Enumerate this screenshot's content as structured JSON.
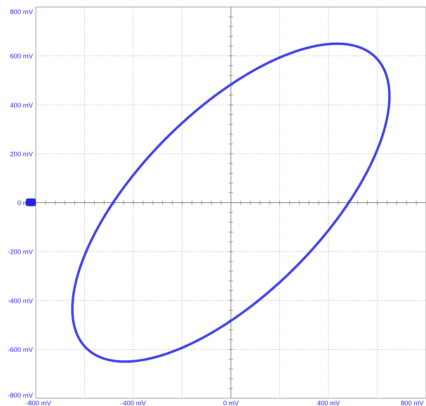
{
  "chart_data": {
    "type": "line",
    "title": "",
    "xlabel": "",
    "ylabel": "",
    "xlim": [
      -800,
      800
    ],
    "ylim": [
      -800,
      800
    ],
    "grid": true,
    "x_ticks": [
      {
        "value": -800,
        "label": "-800 mV"
      },
      {
        "value": -400,
        "label": "-400 mV"
      },
      {
        "value": 0,
        "label": "0 mV"
      },
      {
        "value": 400,
        "label": "400 mV"
      },
      {
        "value": 800,
        "label": "800 mV"
      }
    ],
    "y_ticks": [
      {
        "value": 800,
        "label": "800 mV"
      },
      {
        "value": 600,
        "label": "600 mV"
      },
      {
        "value": 400,
        "label": "400 mV"
      },
      {
        "value": 200,
        "label": "200 mV"
      },
      {
        "value": 0,
        "label": "0 mV"
      },
      {
        "value": -200,
        "label": "-200 mV"
      },
      {
        "value": -400,
        "label": "-400 mV"
      },
      {
        "value": -600,
        "label": "-600 mV"
      },
      {
        "value": -800,
        "label": "-800 mV"
      }
    ],
    "grid_step": 200,
    "series": [
      {
        "curve": "lissajous-ellipse",
        "amplitude_x": 650,
        "amplitude_y": 650,
        "phase_deg": 48,
        "color": "#1f1fe6"
      }
    ],
    "ground_marker_y": 0,
    "colors": {
      "grid": "#a0a0a0",
      "axis": "#7d7d7d",
      "labels": "#1a1aff",
      "marker": "#2323d8"
    }
  }
}
